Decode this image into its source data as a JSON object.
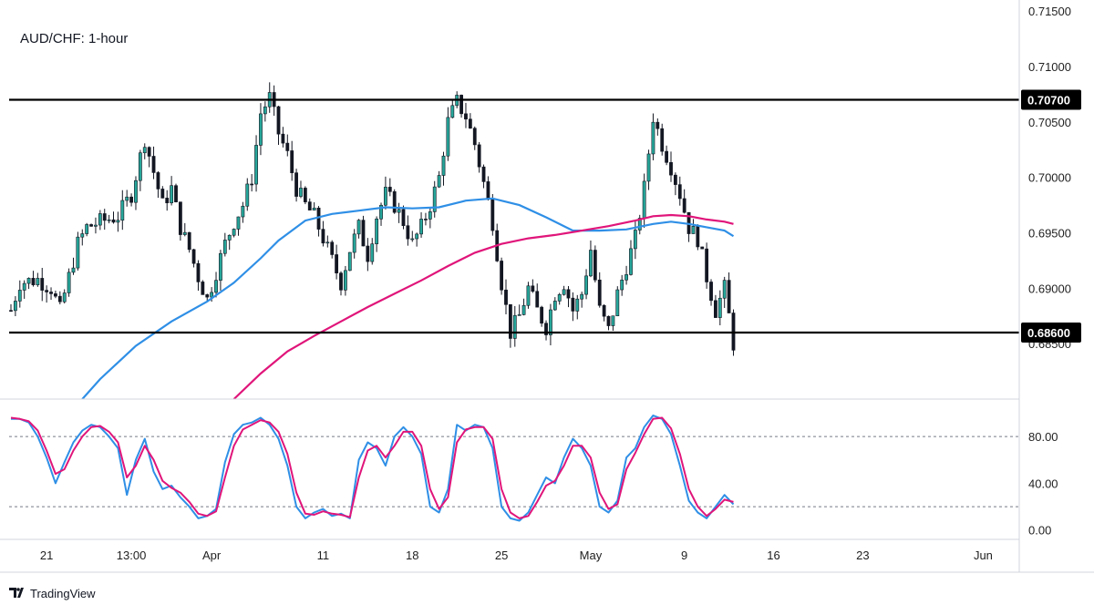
{
  "header": {
    "title": "AUD/CHF: 1-hour"
  },
  "branding": {
    "label": "TradingView"
  },
  "colors": {
    "background": "#ffffff",
    "bull": "#26a69a",
    "bear": "#131722",
    "ma_fast": "#2f8fe6",
    "ma_slow": "#e0157a",
    "stoch_k": "#2f8fe6",
    "stoch_d": "#e0157a",
    "levels": "#000000",
    "grid": "#e0e3eb"
  },
  "chart_data": [
    {
      "type": "line",
      "title": "AUD/CHF: 1-hour",
      "note": "candlestick price chart with two moving averages and horizontal support/resistance lines",
      "price_axis": {
        "ylim": [
          0.68,
          0.716
        ],
        "ticks": [
          "0.71500",
          "0.71000",
          "0.70500",
          "0.70000",
          "0.69500",
          "0.69000",
          "0.68500"
        ]
      },
      "x_axis": {
        "xlim": [
          0,
          111
        ],
        "ticks": [
          {
            "x": 4,
            "label": "21"
          },
          {
            "x": 13.5,
            "label": "13:00"
          },
          {
            "x": 22.5,
            "label": "Apr"
          },
          {
            "x": 35,
            "label": "11"
          },
          {
            "x": 45,
            "label": "18"
          },
          {
            "x": 55,
            "label": "25"
          },
          {
            "x": 65,
            "label": "May"
          },
          {
            "x": 75.5,
            "label": "9"
          },
          {
            "x": 85.5,
            "label": "16"
          },
          {
            "x": 95.5,
            "label": "23"
          },
          {
            "x": 109,
            "label": "Jun"
          }
        ]
      },
      "horizontal_levels": [
        {
          "value": 0.707,
          "label": "0.70700"
        },
        {
          "value": 0.686,
          "label": "0.68600"
        }
      ],
      "series": [
        {
          "name": "",
          "kind": "ma_fast",
          "x": [
            8,
            10,
            14,
            18,
            22,
            25,
            28,
            30,
            33,
            36,
            39,
            42,
            45,
            48,
            51,
            54,
            57,
            60,
            63,
            66,
            69,
            72,
            74,
            76,
            78,
            80,
            81
          ],
          "y": [
            0.68,
            0.6818,
            0.6848,
            0.687,
            0.6888,
            0.6905,
            0.6927,
            0.6943,
            0.6961,
            0.6967,
            0.697,
            0.6973,
            0.6972,
            0.6973,
            0.6979,
            0.6981,
            0.6975,
            0.6964,
            0.6952,
            0.6952,
            0.6953,
            0.6958,
            0.696,
            0.6958,
            0.6955,
            0.6952,
            0.6947
          ]
        },
        {
          "name": "",
          "kind": "ma_slow",
          "x": [
            25,
            28,
            31,
            34,
            37,
            40,
            43,
            46,
            49,
            52,
            55,
            58,
            61,
            64,
            67,
            70,
            72,
            74,
            76,
            78,
            80,
            81
          ],
          "y": [
            0.68,
            0.6823,
            0.6843,
            0.6857,
            0.687,
            0.6883,
            0.6895,
            0.6907,
            0.692,
            0.6932,
            0.694,
            0.6945,
            0.6948,
            0.6952,
            0.6956,
            0.6961,
            0.6965,
            0.6966,
            0.6965,
            0.6962,
            0.696,
            0.6958
          ]
        }
      ],
      "candles_close_path": [
        [
          0,
          0.688
        ],
        [
          1,
          0.6905
        ],
        [
          3,
          0.6908
        ],
        [
          4.5,
          0.69
        ],
        [
          5.5,
          0.688
        ],
        [
          6.5,
          0.691
        ],
        [
          7.5,
          0.694
        ],
        [
          8.5,
          0.6955
        ],
        [
          10,
          0.696
        ],
        [
          12,
          0.6965
        ],
        [
          13.5,
          0.6985
        ],
        [
          15,
          0.7035
        ],
        [
          16,
          0.7005
        ],
        [
          17,
          0.6975
        ],
        [
          18,
          0.699
        ],
        [
          19,
          0.6955
        ],
        [
          20,
          0.6935
        ],
        [
          21,
          0.691
        ],
        [
          22,
          0.689
        ],
        [
          23,
          0.6915
        ],
        [
          24,
          0.694
        ],
        [
          25,
          0.696
        ],
        [
          26,
          0.6975
        ],
        [
          27,
          0.7
        ],
        [
          28,
          0.7058
        ],
        [
          29,
          0.7072
        ],
        [
          30,
          0.704
        ],
        [
          31,
          0.702
        ],
        [
          32,
          0.699
        ],
        [
          33,
          0.6975
        ],
        [
          34,
          0.6965
        ],
        [
          35,
          0.6945
        ],
        [
          36,
          0.6925
        ],
        [
          37,
          0.6905
        ],
        [
          38,
          0.6935
        ],
        [
          39,
          0.6955
        ],
        [
          40,
          0.693
        ],
        [
          41,
          0.6965
        ],
        [
          42,
          0.6985
        ],
        [
          43,
          0.6975
        ],
        [
          44,
          0.696
        ],
        [
          45,
          0.694
        ],
        [
          46,
          0.6955
        ],
        [
          47,
          0.6975
        ],
        [
          48,
          0.7
        ],
        [
          49,
          0.705
        ],
        [
          50,
          0.7068
        ],
        [
          51,
          0.7055
        ],
        [
          52,
          0.703
        ],
        [
          53,
          0.6995
        ],
        [
          54,
          0.696
        ],
        [
          55,
          0.6905
        ],
        [
          56,
          0.686
        ],
        [
          57,
          0.6875
        ],
        [
          58,
          0.69
        ],
        [
          59,
          0.688
        ],
        [
          60,
          0.6865
        ],
        [
          61,
          0.6895
        ],
        [
          62,
          0.6905
        ],
        [
          63,
          0.688
        ],
        [
          64,
          0.6895
        ],
        [
          65,
          0.6935
        ],
        [
          66,
          0.688
        ],
        [
          67,
          0.6862
        ],
        [
          68,
          0.6895
        ],
        [
          69,
          0.692
        ],
        [
          70,
          0.6945
        ],
        [
          71,
          0.699
        ],
        [
          72,
          0.7055
        ],
        [
          73,
          0.703
        ],
        [
          74,
          0.701
        ],
        [
          75,
          0.6985
        ],
        [
          76,
          0.6955
        ],
        [
          77,
          0.6945
        ],
        [
          78,
          0.691
        ],
        [
          79,
          0.688
        ],
        [
          80,
          0.69
        ],
        [
          81,
          0.685
        ]
      ]
    },
    {
      "type": "line",
      "note": "stochastic oscillator pane",
      "ylim": [
        -8,
        112
      ],
      "ticks": [
        "80.00",
        "40.00",
        "0.00"
      ],
      "levels": [
        80,
        20
      ],
      "series": [
        {
          "name": "",
          "kind": "stoch_k",
          "x": [
            0,
            1,
            2,
            3,
            4,
            5,
            6,
            7,
            8,
            9,
            10,
            11,
            12,
            13,
            14,
            15,
            16,
            17,
            18,
            19,
            20,
            21,
            22,
            23,
            24,
            25,
            26,
            27,
            28,
            29,
            30,
            31,
            32,
            33,
            34,
            35,
            36,
            37,
            38,
            39,
            40,
            41,
            42,
            43,
            44,
            45,
            46,
            47,
            48,
            49,
            50,
            51,
            52,
            53,
            54,
            55,
            56,
            57,
            58,
            59,
            60,
            61,
            62,
            63,
            64,
            65,
            66,
            67,
            68,
            69,
            70,
            71,
            72,
            73,
            74,
            75,
            76,
            77,
            78,
            79,
            80,
            81
          ],
          "y": [
            95,
            95,
            92,
            80,
            62,
            40,
            58,
            75,
            85,
            90,
            88,
            80,
            70,
            30,
            60,
            78,
            50,
            35,
            38,
            28,
            20,
            10,
            12,
            18,
            58,
            82,
            90,
            92,
            96,
            90,
            78,
            55,
            20,
            10,
            15,
            18,
            12,
            14,
            10,
            60,
            75,
            70,
            55,
            80,
            88,
            80,
            65,
            20,
            15,
            35,
            90,
            85,
            90,
            88,
            70,
            20,
            10,
            8,
            15,
            30,
            45,
            40,
            62,
            78,
            70,
            55,
            20,
            15,
            25,
            62,
            70,
            88,
            98,
            95,
            82,
            55,
            25,
            15,
            10,
            20,
            30,
            22
          ]
        },
        {
          "name": "",
          "kind": "stoch_d",
          "x": [
            0,
            1,
            2,
            3,
            4,
            5,
            6,
            7,
            8,
            9,
            10,
            11,
            12,
            13,
            14,
            15,
            16,
            17,
            18,
            19,
            20,
            21,
            22,
            23,
            24,
            25,
            26,
            27,
            28,
            29,
            30,
            31,
            32,
            33,
            34,
            35,
            36,
            37,
            38,
            39,
            40,
            41,
            42,
            43,
            44,
            45,
            46,
            47,
            48,
            49,
            50,
            51,
            52,
            53,
            54,
            55,
            56,
            57,
            58,
            59,
            60,
            61,
            62,
            63,
            64,
            65,
            66,
            67,
            68,
            69,
            70,
            71,
            72,
            73,
            74,
            75,
            76,
            77,
            78,
            79,
            80,
            81
          ],
          "y": [
            96,
            95,
            93,
            85,
            68,
            48,
            52,
            68,
            80,
            88,
            89,
            84,
            75,
            45,
            55,
            72,
            60,
            42,
            36,
            32,
            24,
            14,
            12,
            16,
            45,
            72,
            86,
            90,
            94,
            92,
            84,
            65,
            32,
            14,
            13,
            16,
            14,
            13,
            11,
            45,
            68,
            72,
            62,
            72,
            84,
            84,
            72,
            35,
            18,
            28,
            75,
            86,
            88,
            88,
            78,
            35,
            15,
            10,
            12,
            24,
            38,
            42,
            55,
            72,
            72,
            62,
            32,
            18,
            22,
            52,
            66,
            82,
            95,
            96,
            87,
            65,
            35,
            20,
            12,
            18,
            26,
            24
          ]
        }
      ]
    }
  ]
}
